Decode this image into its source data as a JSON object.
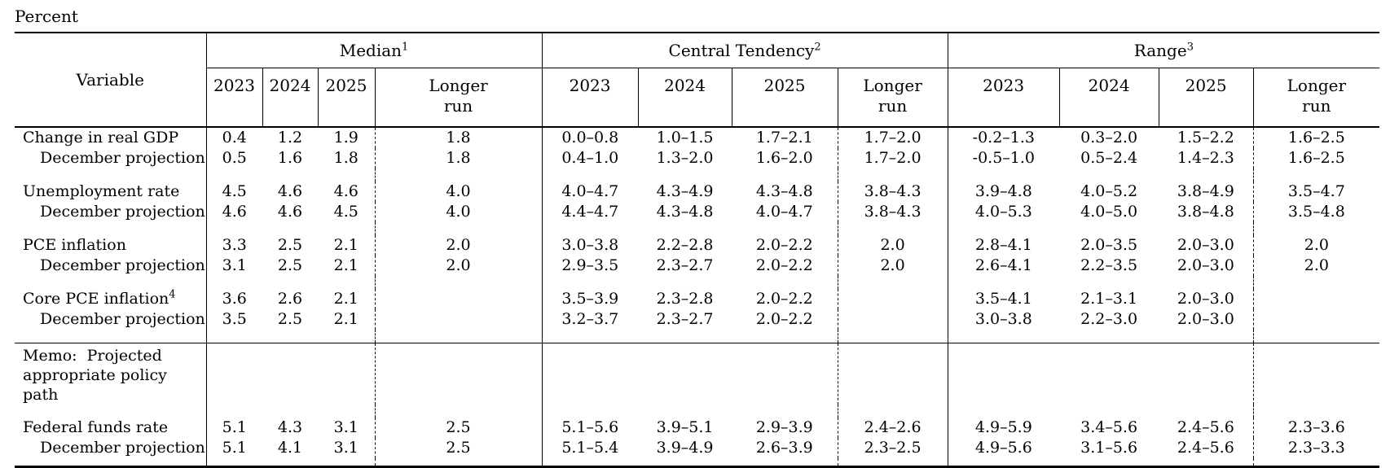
{
  "unit_label": "Percent",
  "colors": {
    "text": "#000000",
    "background": "#ffffff",
    "rule": "#000000"
  },
  "header": {
    "variable": "Variable",
    "groups": [
      {
        "label": "Median",
        "sup": "1"
      },
      {
        "label": "Central Tendency",
        "sup": "2"
      },
      {
        "label": "Range",
        "sup": "3"
      }
    ],
    "years": [
      "2023",
      "2024",
      "2025"
    ],
    "longer_run": [
      "Longer",
      "run"
    ]
  },
  "body": {
    "groups": [
      {
        "rows": [
          {
            "label": "Change in real GDP",
            "indent": false,
            "values": [
              "0.4",
              "1.2",
              "1.9",
              "1.8",
              "0.0–0.8",
              "1.0–1.5",
              "1.7–2.1",
              "1.7–2.0",
              "-0.2–1.3",
              "0.3–2.0",
              "1.5–2.2",
              "1.6–2.5"
            ]
          },
          {
            "label": "December projection",
            "indent": true,
            "values": [
              "0.5",
              "1.6",
              "1.8",
              "1.8",
              "0.4–1.0",
              "1.3–2.0",
              "1.6–2.0",
              "1.7–2.0",
              "-0.5–1.0",
              "0.5–2.4",
              "1.4–2.3",
              "1.6–2.5"
            ]
          }
        ]
      },
      {
        "rows": [
          {
            "label": "Unemployment rate",
            "indent": false,
            "values": [
              "4.5",
              "4.6",
              "4.6",
              "4.0",
              "4.0–4.7",
              "4.3–4.9",
              "4.3–4.8",
              "3.8–4.3",
              "3.9–4.8",
              "4.0–5.2",
              "3.8–4.9",
              "3.5–4.7"
            ]
          },
          {
            "label": "December projection",
            "indent": true,
            "values": [
              "4.6",
              "4.6",
              "4.5",
              "4.0",
              "4.4–4.7",
              "4.3–4.8",
              "4.0–4.7",
              "3.8–4.3",
              "4.0–5.3",
              "4.0–5.0",
              "3.8–4.8",
              "3.5–4.8"
            ]
          }
        ]
      },
      {
        "rows": [
          {
            "label": "PCE inflation",
            "indent": false,
            "values": [
              "3.3",
              "2.5",
              "2.1",
              "2.0",
              "3.0–3.8",
              "2.2–2.8",
              "2.0–2.2",
              "2.0",
              "2.8–4.1",
              "2.0–3.5",
              "2.0–3.0",
              "2.0"
            ]
          },
          {
            "label": "December projection",
            "indent": true,
            "values": [
              "3.1",
              "2.5",
              "2.1",
              "2.0",
              "2.9–3.5",
              "2.3–2.7",
              "2.0–2.2",
              "2.0",
              "2.6–4.1",
              "2.2–3.5",
              "2.0–3.0",
              "2.0"
            ]
          }
        ]
      },
      {
        "rows": [
          {
            "label": "Core PCE inflation",
            "sup": "4",
            "indent": false,
            "values": [
              "3.6",
              "2.6",
              "2.1",
              "",
              "3.5–3.9",
              "2.3–2.8",
              "2.0–2.2",
              "",
              "3.5–4.1",
              "2.1–3.1",
              "2.0–3.0",
              ""
            ]
          },
          {
            "label": "December projection",
            "indent": true,
            "values": [
              "3.5",
              "2.5",
              "2.1",
              "",
              "3.2–3.7",
              "2.3–2.7",
              "2.0–2.2",
              "",
              "3.0–3.8",
              "2.2–3.0",
              "2.0–3.0",
              ""
            ]
          }
        ]
      }
    ],
    "memo_row": {
      "lines": [
        "Memo:  Projected",
        "appropriate policy path"
      ]
    },
    "policy_groups": [
      {
        "rows": [
          {
            "label": "Federal funds rate",
            "indent": false,
            "values": [
              "5.1",
              "4.3",
              "3.1",
              "2.5",
              "5.1–5.6",
              "3.9–5.1",
              "2.9–3.9",
              "2.4–2.6",
              "4.9–5.9",
              "3.4–5.6",
              "2.4–5.6",
              "2.3–3.6"
            ]
          },
          {
            "label": "December projection",
            "indent": true,
            "values": [
              "5.1",
              "4.1",
              "3.1",
              "2.5",
              "5.1–5.4",
              "3.9–4.9",
              "2.6–3.9",
              "2.3–2.5",
              "4.9–5.6",
              "3.1–5.6",
              "2.4–5.6",
              "2.3–3.3"
            ]
          }
        ]
      }
    ]
  }
}
